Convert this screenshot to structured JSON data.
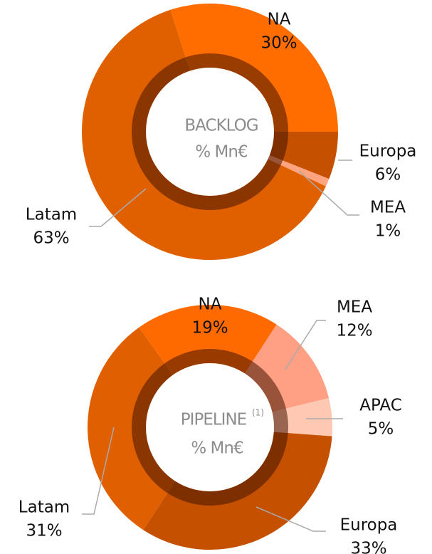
{
  "chart_data": [
    {
      "type": "donut",
      "center_label": "BACKLOG",
      "center_sub": "% Mn€",
      "categories": [
        "NA",
        "Europa",
        "MEA",
        "Latam"
      ],
      "values": [
        30,
        6,
        1,
        63
      ],
      "value_labels": [
        "30%",
        "6%",
        "1%",
        "63%"
      ],
      "colors": [
        "#ff6d00",
        "#c45000",
        "#ffa47e",
        "#e06000"
      ]
    },
    {
      "type": "donut",
      "center_label": "PIPELINE",
      "center_sup": "(1)",
      "center_sub": "% Mn€",
      "categories": [
        "NA",
        "MEA",
        "APAC",
        "Europa",
        "Latam"
      ],
      "values": [
        19,
        12,
        5,
        33,
        31
      ],
      "value_labels": [
        "19%",
        "12%",
        "5%",
        "33%",
        "31%"
      ],
      "colors": [
        "#ff6a00",
        "#ffa084",
        "#ffc8b2",
        "#c45000",
        "#e05f00"
      ]
    }
  ]
}
